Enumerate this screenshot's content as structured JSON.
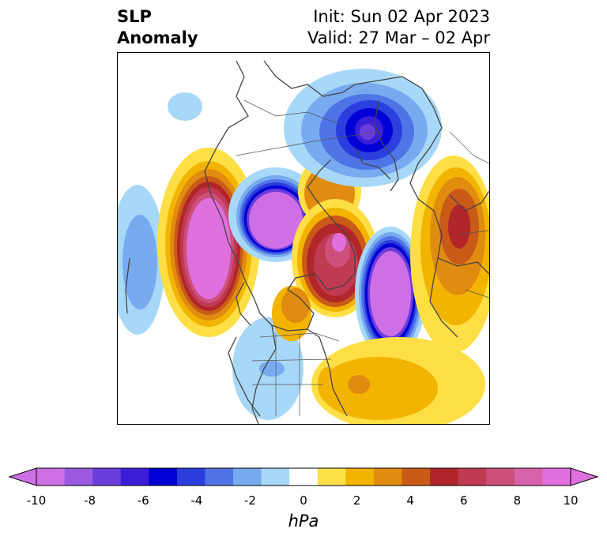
{
  "title": {
    "left_line1": "SLP",
    "left_line2": "Anomaly",
    "right_line1": "Init: Sun 02 Apr 2023",
    "right_line2": "Valid: 27 Mar – 02 Apr"
  },
  "colorbar": {
    "units": "hPa",
    "tick_labels": [
      "-10",
      "-8",
      "-6",
      "-4",
      "-2",
      "0",
      "2",
      "4",
      "6",
      "8",
      "10"
    ],
    "colors": [
      "#cf6fe6",
      "#9b58e0",
      "#6a3ddb",
      "#3b1fd8",
      "#0000d6",
      "#2b3ede",
      "#4f74e6",
      "#78aaf0",
      "#a8d8f8",
      "#ffffff",
      "#ffdf45",
      "#f3b400",
      "#e08c10",
      "#c95a18",
      "#b0262a",
      "#c03a52",
      "#cc4f7c",
      "#d764ab",
      "#e070de"
    ]
  },
  "map": {
    "projection": "north-polar-stereographic",
    "field": "sea level pressure anomaly"
  }
}
